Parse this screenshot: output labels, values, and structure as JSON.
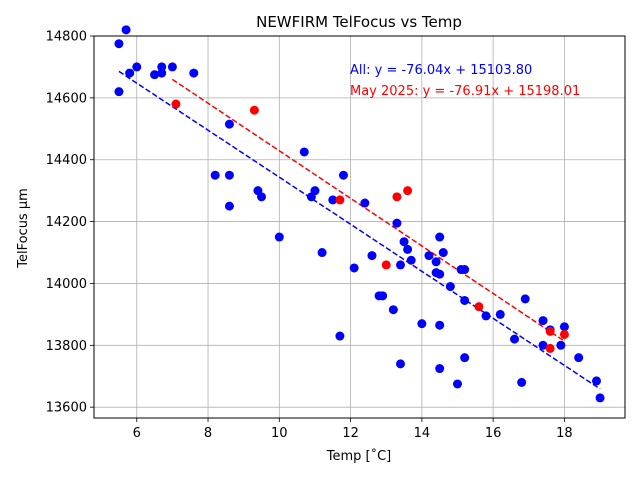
{
  "chart_data": {
    "type": "scatter",
    "title": "NEWFIRM TelFocus vs Temp",
    "xlabel": "Temp [˚C]",
    "ylabel": "TelFocus μm",
    "xlim": [
      4.8,
      19.7
    ],
    "ylim": [
      13565,
      14800
    ],
    "xticks": [
      6,
      8,
      10,
      12,
      14,
      16,
      18
    ],
    "yticks": [
      13600,
      13800,
      14000,
      14200,
      14400,
      14600,
      14800
    ],
    "grid": true,
    "colors": {
      "all": "#0000ff",
      "may": "#ff0000"
    },
    "series": [
      {
        "key": "all",
        "points": [
          [
            5.5,
            14775
          ],
          [
            5.5,
            14620
          ],
          [
            5.7,
            14820
          ],
          [
            5.8,
            14680
          ],
          [
            6.0,
            14700
          ],
          [
            6.5,
            14675
          ],
          [
            6.7,
            14700
          ],
          [
            6.7,
            14680
          ],
          [
            7.0,
            14700
          ],
          [
            7.6,
            14680
          ],
          [
            8.2,
            14350
          ],
          [
            8.6,
            14350
          ],
          [
            8.6,
            14515
          ],
          [
            8.6,
            14250
          ],
          [
            9.4,
            14300
          ],
          [
            9.5,
            14280
          ],
          [
            10.0,
            14150
          ],
          [
            10.7,
            14425
          ],
          [
            10.9,
            14280
          ],
          [
            11.0,
            14300
          ],
          [
            11.2,
            14100
          ],
          [
            11.5,
            14270
          ],
          [
            11.7,
            13830
          ],
          [
            11.8,
            14350
          ],
          [
            12.1,
            14050
          ],
          [
            12.4,
            14260
          ],
          [
            12.6,
            14090
          ],
          [
            12.8,
            13960
          ],
          [
            12.9,
            13960
          ],
          [
            13.2,
            13915
          ],
          [
            13.3,
            14195
          ],
          [
            13.4,
            14060
          ],
          [
            13.4,
            13740
          ],
          [
            13.5,
            14135
          ],
          [
            13.6,
            14110
          ],
          [
            13.7,
            14075
          ],
          [
            14.0,
            13870
          ],
          [
            14.2,
            14090
          ],
          [
            14.4,
            14070
          ],
          [
            14.4,
            14035
          ],
          [
            14.5,
            14150
          ],
          [
            14.5,
            14030
          ],
          [
            14.5,
            13865
          ],
          [
            14.5,
            13725
          ],
          [
            14.6,
            14100
          ],
          [
            14.8,
            13990
          ],
          [
            15.0,
            13675
          ],
          [
            15.1,
            14045
          ],
          [
            15.2,
            14045
          ],
          [
            15.2,
            13945
          ],
          [
            15.2,
            13760
          ],
          [
            15.8,
            13895
          ],
          [
            16.2,
            13900
          ],
          [
            16.6,
            13820
          ],
          [
            16.8,
            13680
          ],
          [
            16.9,
            13950
          ],
          [
            17.4,
            13880
          ],
          [
            17.4,
            13800
          ],
          [
            17.6,
            13850
          ],
          [
            17.9,
            13800
          ],
          [
            18.0,
            13860
          ],
          [
            18.4,
            13760
          ],
          [
            18.9,
            13685
          ],
          [
            19.0,
            13630
          ]
        ]
      },
      {
        "key": "may",
        "points": [
          [
            7.1,
            14580
          ],
          [
            9.3,
            14560
          ],
          [
            11.7,
            14270
          ],
          [
            13.0,
            14060
          ],
          [
            13.3,
            14280
          ],
          [
            13.6,
            14300
          ],
          [
            15.6,
            13925
          ],
          [
            17.6,
            13845
          ],
          [
            17.6,
            13790
          ],
          [
            18.0,
            13835
          ]
        ]
      }
    ],
    "fits": [
      {
        "key": "all",
        "slope": -76.04,
        "intercept": 15103.8,
        "x_range": [
          5.5,
          19.0
        ],
        "label": "All: y = -76.04x + 15103.80"
      },
      {
        "key": "may",
        "slope": -76.91,
        "intercept": 15198.01,
        "x_range": [
          7.0,
          18.0
        ],
        "label": "May 2025: y = -76.91x + 15198.01"
      }
    ]
  }
}
